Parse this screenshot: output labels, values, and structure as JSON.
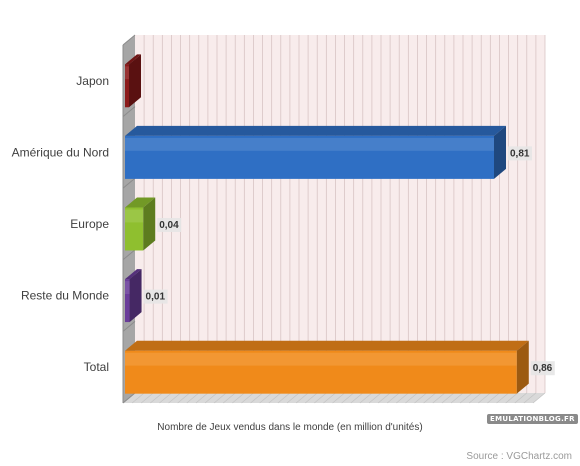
{
  "chart_data": {
    "type": "bar",
    "orientation": "horizontal",
    "categories": [
      "Japon",
      "Amérique du Nord",
      "Europe",
      "Reste du Monde",
      "Total"
    ],
    "values": [
      0,
      0.81,
      0.04,
      0.01,
      0.86
    ],
    "value_labels": [
      "",
      "0,81",
      "0,04",
      "0,01",
      "0,86"
    ],
    "colors": [
      "#8b1a1a",
      "#2f6fc4",
      "#8fbf2f",
      "#6a3d9a",
      "#f08a1a"
    ],
    "xlabel": "Nombre de Jeux vendus dans le monde (en million d'unités)",
    "xlim": [
      0,
      0.9
    ],
    "grid": true,
    "legend": "none",
    "style": "3d"
  },
  "source": "Source : VGChartz.com",
  "watermark": "EMULATIONBLOG.FR"
}
